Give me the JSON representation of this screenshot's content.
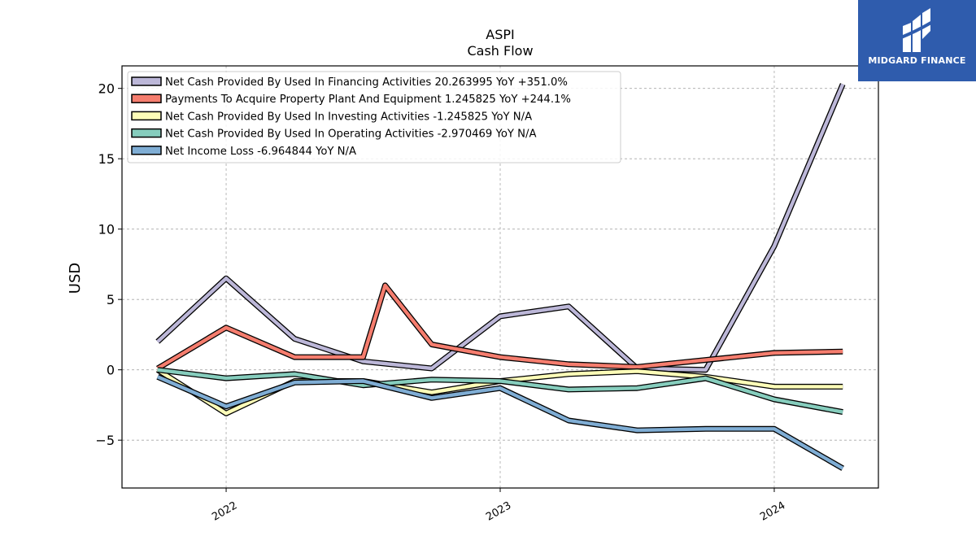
{
  "chart_data": {
    "type": "line",
    "title": "ASPI",
    "subtitle": "Cash Flow",
    "ylabel": "USD",
    "xlabel": "",
    "ylim": [
      -8.4,
      21.6
    ],
    "xlim": [
      2021.62,
      2024.38
    ],
    "yticks": [
      -5,
      0,
      5,
      10,
      15,
      20
    ],
    "yticklabels": [
      "−5",
      "0",
      "5",
      "10",
      "15",
      "20"
    ],
    "xticks": [
      2022,
      2023,
      2024
    ],
    "xticklabels": [
      "2022",
      "2023",
      "2024"
    ],
    "grid": true,
    "legend_position": "upper-left",
    "series": [
      {
        "name": "Net Cash Provided By Used In Financing Activities  20.263995 YoY +351.0%",
        "color": "#bcb7d8",
        "x": [
          2021.75,
          2022.0,
          2022.25,
          2022.5,
          2022.75,
          2023.0,
          2023.25,
          2023.5,
          2023.75,
          2024.0,
          2024.25
        ],
        "y": [
          2.0,
          6.5,
          2.2,
          0.6,
          0.1,
          3.8,
          4.5,
          0.1,
          0.0,
          8.8,
          20.3
        ]
      },
      {
        "name": "Payments To Acquire Property Plant And Equipment  1.245825 YoY +244.1%",
        "color": "#f57d6e",
        "x": [
          2021.75,
          2022.0,
          2022.25,
          2022.5,
          2022.58,
          2022.75,
          2023.0,
          2023.25,
          2023.5,
          2023.75,
          2024.0,
          2024.25
        ],
        "y": [
          0.1,
          3.0,
          0.9,
          0.9,
          6.0,
          1.8,
          0.9,
          0.4,
          0.2,
          0.7,
          1.2,
          1.3
        ]
      },
      {
        "name": "Net Cash Provided By Used In Investing Activities  -1.245825 YoY N/A",
        "color": "#fdfdb8",
        "x": [
          2021.75,
          2022.0,
          2022.25,
          2022.5,
          2022.75,
          2023.0,
          2023.25,
          2023.5,
          2023.75,
          2024.0,
          2024.25
        ],
        "y": [
          0.0,
          -3.1,
          -0.8,
          -0.8,
          -1.6,
          -0.8,
          -0.3,
          -0.1,
          -0.5,
          -1.2,
          -1.2
        ]
      },
      {
        "name": "Net Cash Provided By Used In Operating Activities  -2.970469 YoY N/A",
        "color": "#86cdbd",
        "x": [
          2021.75,
          2022.0,
          2022.25,
          2022.5,
          2022.75,
          2023.0,
          2023.25,
          2023.5,
          2023.75,
          2024.0,
          2024.25
        ],
        "y": [
          0.0,
          -0.6,
          -0.3,
          -1.1,
          -0.7,
          -0.8,
          -1.4,
          -1.3,
          -0.6,
          -2.1,
          -3.0
        ]
      },
      {
        "name": "Net Income Loss  -6.964844 YoY N/A",
        "color": "#7fadd4",
        "x": [
          2021.75,
          2022.0,
          2022.25,
          2022.5,
          2022.75,
          2023.0,
          2023.25,
          2023.5,
          2023.75,
          2024.0,
          2024.25
        ],
        "y": [
          -0.5,
          -2.6,
          -0.9,
          -0.8,
          -2.0,
          -1.3,
          -3.6,
          -4.3,
          -4.2,
          -4.2,
          -7.0
        ]
      }
    ]
  },
  "branding": {
    "logo_text": "MIDGARD FINANCE",
    "logo_color": "#2f5cad"
  }
}
